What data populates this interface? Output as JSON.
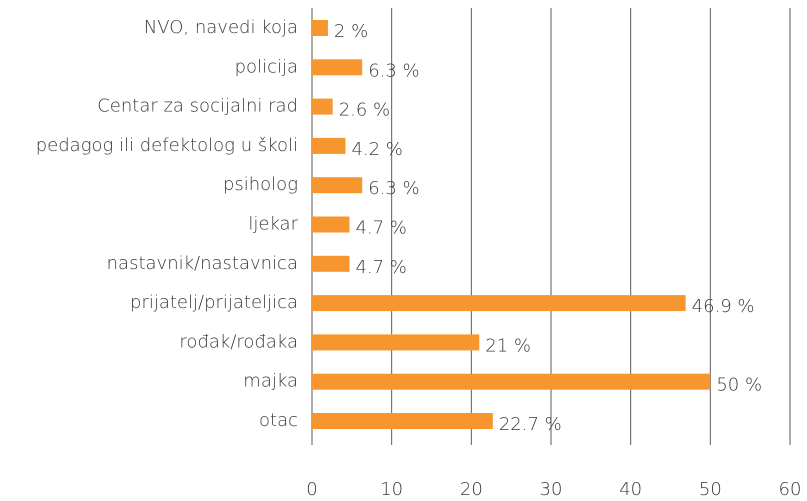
{
  "chart_data": {
    "type": "bar",
    "orientation": "horizontal",
    "categories": [
      "NVO, navedi koja",
      "policija",
      "Centar za socijalni rad",
      "pedagog ili defektolog u školi",
      "psiholog",
      "ljekar",
      "nastavnik/nastavnica",
      "prijatelj/prijateljica",
      "rođak/rođaka",
      "majka",
      "otac"
    ],
    "values": [
      2,
      6.3,
      2.6,
      4.2,
      6.3,
      4.7,
      4.7,
      46.9,
      21,
      50,
      22.7
    ],
    "value_labels": [
      "2 %",
      "6.3 %",
      "2.6 %",
      "4.2 %",
      "6.3 %",
      "4.7 %",
      "4.7 %",
      "46.9 %",
      "21 %",
      "50 %",
      "22.7 %"
    ],
    "color": "#f7962f",
    "xlim": [
      0,
      60
    ],
    "xticks": [
      0,
      10,
      20,
      30,
      40,
      50,
      60
    ],
    "grid": true
  }
}
